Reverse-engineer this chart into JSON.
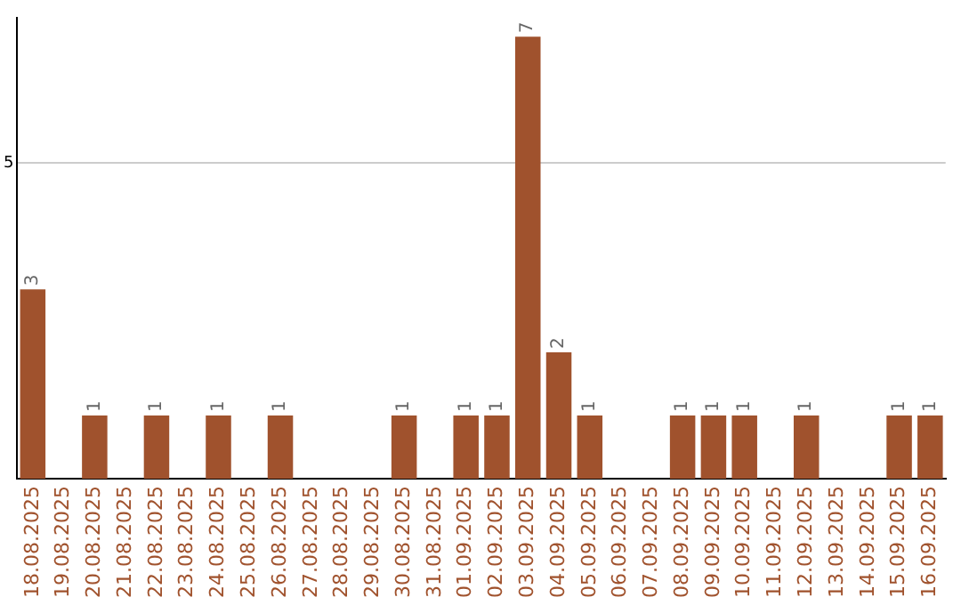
{
  "chart_data": {
    "type": "bar",
    "categories": [
      "18.08.2025",
      "19.08.2025",
      "20.08.2025",
      "21.08.2025",
      "22.08.2025",
      "23.08.2025",
      "24.08.2025",
      "25.08.2025",
      "26.08.2025",
      "27.08.2025",
      "28.08.2025",
      "29.08.2025",
      "30.08.2025",
      "31.08.2025",
      "01.09.2025",
      "02.09.2025",
      "03.09.2025",
      "04.09.2025",
      "05.09.2025",
      "06.09.2025",
      "07.09.2025",
      "08.09.2025",
      "09.09.2025",
      "10.09.2025",
      "11.09.2025",
      "12.09.2025",
      "13.09.2025",
      "14.09.2025",
      "15.09.2025",
      "16.09.2025"
    ],
    "values": [
      3,
      0,
      1,
      0,
      1,
      0,
      1,
      0,
      1,
      0,
      0,
      0,
      1,
      0,
      1,
      1,
      7,
      2,
      1,
      0,
      0,
      1,
      1,
      1,
      0,
      1,
      0,
      0,
      1,
      1
    ],
    "value_labels": [
      "3",
      null,
      "1",
      null,
      "1",
      null,
      "1",
      null,
      "1",
      null,
      null,
      null,
      "1",
      null,
      "1",
      "1",
      "7",
      "2",
      "1",
      null,
      null,
      "1",
      "1",
      "1",
      null,
      "1",
      null,
      null,
      "1",
      "1"
    ],
    "color": "#a0522d",
    "ylim": [
      0,
      7.3
    ],
    "yticks": [
      5
    ],
    "grid": "y",
    "legend": false
  }
}
